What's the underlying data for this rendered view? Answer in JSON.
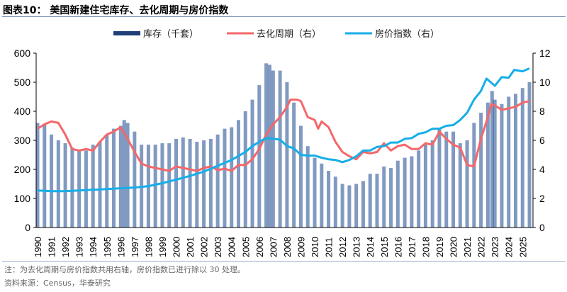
{
  "title": "图表10：  美国新建住宅库存、去化周期与房价指数",
  "note": "注：为去化周期与房价指数共用右轴，房价指数已进行除以 30 处理。",
  "source": "资料来源：Census，华泰研究",
  "chart_data": {
    "type": "bar+line",
    "legend_position": "top",
    "grid": false,
    "xlim": [
      1990,
      2025.6
    ],
    "x_ticks": [
      "1990",
      "1991",
      "1992",
      "1993",
      "1994",
      "1995",
      "1996",
      "1997",
      "1998",
      "1999",
      "2000",
      "2001",
      "2002",
      "2003",
      "2004",
      "2005",
      "2006",
      "2007",
      "2008",
      "2009",
      "2010",
      "2011",
      "2012",
      "2013",
      "2014",
      "2015",
      "2016",
      "2017",
      "2018",
      "2019",
      "2020",
      "2021",
      "2022",
      "2023",
      "2024",
      "2025"
    ],
    "y_left": {
      "lim": [
        0,
        600
      ],
      "ticks": [
        "0",
        "100",
        "200",
        "300",
        "400",
        "500",
        "600"
      ]
    },
    "y_right": {
      "lim": [
        0,
        12
      ],
      "ticks": [
        "0",
        "2",
        "4",
        "6",
        "8",
        "10",
        "12"
      ]
    },
    "series": [
      {
        "name": "库存（千套）",
        "axis": "left",
        "kind": "bar",
        "color": "#2b5797",
        "x": [
          1990,
          1990.5,
          1991,
          1991.5,
          1992,
          1992.5,
          1993,
          1993.5,
          1994,
          1994.5,
          1995,
          1995.5,
          1996,
          1996.25,
          1996.5,
          1997,
          1997.5,
          1998,
          1998.5,
          1999,
          1999.5,
          2000,
          2000.5,
          2001,
          2001.5,
          2002,
          2002.5,
          2003,
          2003.5,
          2004,
          2004.5,
          2005,
          2005.5,
          2006,
          2006.5,
          2006.75,
          2007,
          2007.5,
          2008,
          2008.5,
          2009,
          2009.5,
          2010,
          2010.5,
          2011,
          2011.5,
          2012,
          2012.5,
          2013,
          2013.5,
          2014,
          2014.5,
          2015,
          2015.5,
          2016,
          2016.5,
          2017,
          2017.5,
          2018,
          2018.5,
          2019,
          2019.5,
          2020,
          2020.5,
          2021,
          2021.5,
          2022,
          2022.5,
          2022.8,
          2023,
          2023.5,
          2024,
          2024.5,
          2025,
          2025.5
        ],
        "values": [
          360,
          355,
          320,
          300,
          290,
          275,
          265,
          265,
          285,
          295,
          320,
          340,
          350,
          370,
          360,
          330,
          285,
          285,
          285,
          290,
          290,
          305,
          310,
          305,
          295,
          300,
          305,
          320,
          340,
          345,
          370,
          400,
          440,
          490,
          565,
          560,
          540,
          540,
          500,
          430,
          350,
          280,
          240,
          220,
          195,
          175,
          150,
          145,
          150,
          160,
          185,
          185,
          210,
          205,
          230,
          240,
          245,
          265,
          290,
          300,
          340,
          330,
          330,
          290,
          300,
          360,
          395,
          430,
          470,
          440,
          425,
          450,
          460,
          480,
          500
        ]
      },
      {
        "name": "去化周期（右）",
        "axis": "right",
        "kind": "line",
        "color": "#f4676a",
        "x": [
          1990,
          1990.5,
          1991,
          1991.5,
          1992,
          1992.5,
          1993,
          1993.5,
          1994,
          1994.5,
          1995,
          1995.5,
          1996,
          1996.5,
          1997,
          1997.5,
          1998,
          1998.5,
          1999,
          1999.5,
          2000,
          2000.5,
          2001,
          2001.5,
          2002,
          2002.5,
          2003,
          2003.5,
          2004,
          2004.5,
          2005,
          2005.5,
          2006,
          2006.5,
          2007,
          2007.5,
          2008,
          2008.25,
          2008.75,
          2009,
          2009.5,
          2010,
          2010.25,
          2010.5,
          2011,
          2011.5,
          2012,
          2012.5,
          2013,
          2013.5,
          2014,
          2014.5,
          2015,
          2015.5,
          2016,
          2016.5,
          2017,
          2017.5,
          2018,
          2018.5,
          2019,
          2019.5,
          2020,
          2020.5,
          2021,
          2021.5,
          2022,
          2022.5,
          2022.75,
          2023,
          2023.5,
          2024,
          2024.5,
          2025,
          2025.5
        ],
        "values": [
          6.8,
          7.1,
          7.3,
          7.2,
          6.4,
          5.4,
          5.3,
          5.4,
          5.3,
          5.9,
          6.4,
          6.6,
          6.9,
          6.1,
          5.2,
          4.4,
          4.2,
          4.1,
          4.0,
          3.9,
          4.2,
          4.1,
          4.0,
          3.9,
          4.1,
          4.2,
          3.95,
          4.05,
          3.9,
          4.3,
          4.3,
          4.7,
          5.4,
          6.4,
          7.1,
          7.6,
          8.3,
          8.8,
          8.8,
          8.7,
          7.6,
          7.4,
          6.8,
          7.3,
          6.9,
          5.9,
          5.2,
          4.9,
          4.7,
          5.2,
          5.1,
          5.2,
          5.8,
          5.3,
          5.6,
          5.7,
          5.4,
          5.4,
          5.8,
          5.7,
          6.6,
          6.1,
          5.7,
          5.5,
          4.3,
          4.2,
          6.1,
          7.6,
          8.5,
          8.4,
          8.1,
          8.2,
          8.3,
          8.6,
          8.7
        ]
      },
      {
        "name": "房价指数（右）",
        "axis": "right",
        "kind": "line",
        "color": "#16aee8",
        "x": [
          1990,
          1991,
          1992,
          1993,
          1994,
          1995,
          1996,
          1997,
          1998,
          1999,
          2000,
          2001,
          2002,
          2003,
          2004,
          2005,
          2005.5,
          2006,
          2006.5,
          2007,
          2007.5,
          2008,
          2008.5,
          2009,
          2009.5,
          2010,
          2010.5,
          2011,
          2011.5,
          2012,
          2012.5,
          2013,
          2013.5,
          2014,
          2014.5,
          2015,
          2015.5,
          2016,
          2016.5,
          2017,
          2017.5,
          2018,
          2018.5,
          2019,
          2019.5,
          2020,
          2020.5,
          2021,
          2021.5,
          2022,
          2022.4,
          2023,
          2023.5,
          2024,
          2024.4,
          2025,
          2025.5
        ],
        "values": [
          2.55,
          2.5,
          2.5,
          2.55,
          2.6,
          2.65,
          2.7,
          2.75,
          2.85,
          3.05,
          3.3,
          3.55,
          3.85,
          4.25,
          4.65,
          5.2,
          5.6,
          5.9,
          6.15,
          6.1,
          6.05,
          5.6,
          5.45,
          5.0,
          4.95,
          4.95,
          4.8,
          4.7,
          4.65,
          4.5,
          4.65,
          4.9,
          5.3,
          5.3,
          5.55,
          5.6,
          5.85,
          5.85,
          6.1,
          6.15,
          6.45,
          6.55,
          6.8,
          6.8,
          7.0,
          7.05,
          7.4,
          7.9,
          8.8,
          9.4,
          10.25,
          9.75,
          10.35,
          10.3,
          10.85,
          10.75,
          10.95
        ]
      }
    ]
  }
}
